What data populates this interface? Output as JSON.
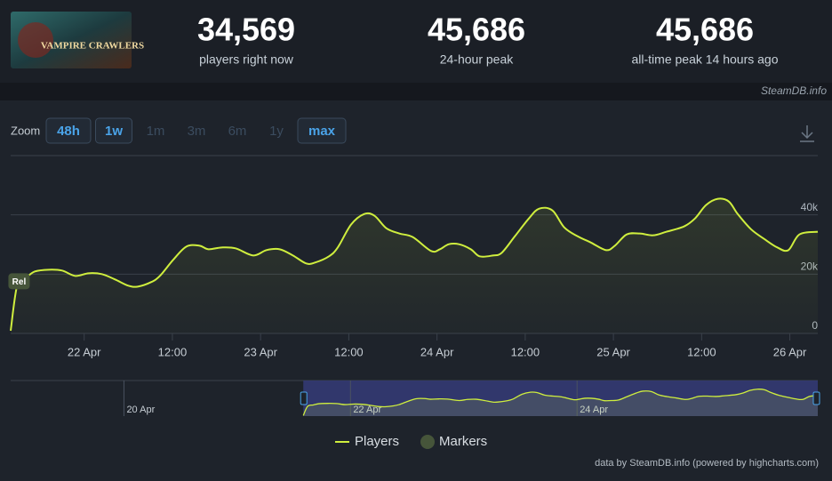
{
  "game_logo": "VAMPIRE CRAWLERS",
  "stats": [
    {
      "value": "34,569",
      "label": "players right now"
    },
    {
      "value": "45,686",
      "label": "24-hour peak"
    },
    {
      "value": "45,686",
      "label": "all-time peak 14 hours ago"
    }
  ],
  "site": "SteamDB.info",
  "zoom": {
    "label": "Zoom",
    "options": [
      "48h",
      "1w",
      "1m",
      "3m",
      "6m",
      "1y",
      "max"
    ],
    "enabled": [
      true,
      true,
      false,
      false,
      false,
      false,
      true
    ]
  },
  "chart_data": {
    "type": "line",
    "x": [
      -10.0,
      -9.1,
      -7.9,
      -6.7,
      -4.8,
      -3.0,
      -1.2,
      0.6,
      2.4,
      4.2,
      6.0,
      7.3,
      9.1,
      10.3,
      12.1,
      13.9,
      15.7,
      16.9,
      18.7,
      20.6,
      23.0,
      24.8,
      26.6,
      28.4,
      30.2,
      31.4,
      33.3,
      34.5,
      36.3,
      38.1,
      39.5,
      41.1,
      42.9,
      44.7,
      47.2,
      48.4,
      49.6,
      51.0,
      52.6,
      53.8,
      55.6,
      56.8,
      58.6,
      60.5,
      61.9,
      63.7,
      65.3,
      67.1,
      68.9,
      71.0,
      72.2,
      73.8,
      75.6,
      77.4,
      79.2,
      81.6,
      83.1,
      84.6,
      86.2,
      87.7,
      88.9,
      90.7,
      92.5,
      94.3,
      95.8,
      97.3,
      99.8
    ],
    "series": [
      {
        "name": "Players",
        "color": "#cfee3e",
        "values": [
          900,
          16400,
          18800,
          20900,
          21500,
          21200,
          19400,
          20300,
          20000,
          18200,
          16100,
          15800,
          17300,
          19400,
          24800,
          29300,
          29600,
          28400,
          29000,
          28700,
          26300,
          28100,
          28400,
          26300,
          23600,
          23900,
          26000,
          29000,
          36700,
          40300,
          39700,
          35500,
          33700,
          32500,
          27800,
          28400,
          30100,
          30100,
          28400,
          26000,
          26300,
          27200,
          32800,
          38800,
          42100,
          41500,
          35800,
          32800,
          30700,
          28100,
          29600,
          33400,
          33700,
          33100,
          34300,
          36100,
          38800,
          43300,
          45400,
          44500,
          40300,
          35200,
          31900,
          29000,
          28100,
          33400,
          34300
        ]
      }
    ],
    "markers": {
      "name": "Markers",
      "color": "#46553a"
    },
    "annotations": [
      {
        "label": "Rel",
        "x": -9.1
      }
    ],
    "xlim": [
      -10,
      99.8
    ],
    "xticks": [
      {
        "value": 0,
        "label": "22 Apr"
      },
      {
        "value": 12,
        "label": "12:00"
      },
      {
        "value": 24,
        "label": "23 Apr"
      },
      {
        "value": 36,
        "label": "12:00"
      },
      {
        "value": 48,
        "label": "24 Apr"
      },
      {
        "value": 60,
        "label": "12:00"
      },
      {
        "value": 72,
        "label": "25 Apr"
      },
      {
        "value": 84,
        "label": "12:00"
      },
      {
        "value": 96,
        "label": "26 Apr"
      }
    ],
    "ylim": [
      0,
      60000
    ],
    "yticks": [
      0,
      {
        "value": 20000,
        "label": "20k"
      },
      {
        "value": 40000,
        "label": "40k"
      }
    ],
    "grid": true,
    "navigator": {
      "xlim": [
        -72,
        99
      ],
      "xticks": [
        {
          "value": -48,
          "label": "20 Apr"
        },
        {
          "value": 0,
          "label": "22 Apr"
        },
        {
          "value": 48,
          "label": "24 Apr"
        }
      ]
    }
  },
  "credits": "data by SteamDB.info (powered by highcharts.com)"
}
